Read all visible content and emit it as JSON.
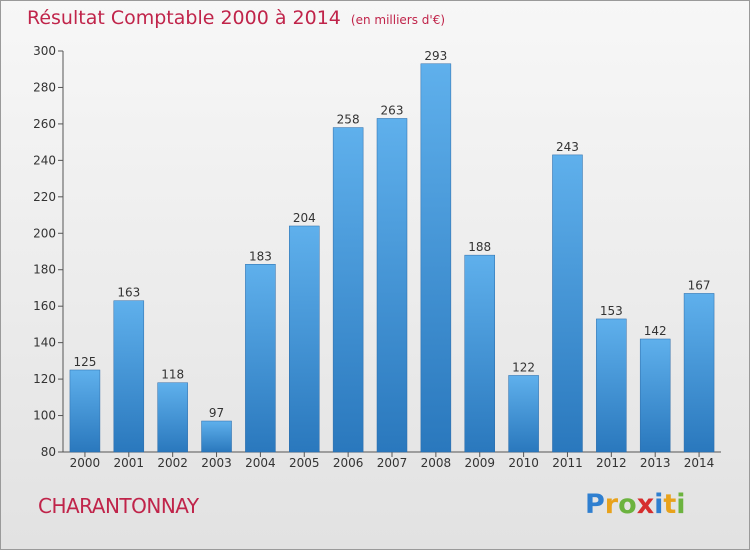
{
  "chart_data": {
    "type": "bar",
    "title": "Résultat Comptable 2000 à 2014",
    "subtitle": "(en milliers d'€)",
    "xlabel": "",
    "ylabel": "",
    "categories": [
      "2000",
      "2001",
      "2002",
      "2003",
      "2004",
      "2005",
      "2006",
      "2007",
      "2008",
      "2009",
      "2010",
      "2011",
      "2012",
      "2013",
      "2014"
    ],
    "values": [
      125,
      163,
      118,
      97,
      183,
      204,
      258,
      263,
      293,
      188,
      122,
      243,
      153,
      142,
      167
    ],
    "ylim": [
      80,
      300
    ],
    "yticks": [
      80,
      100,
      120,
      140,
      160,
      180,
      200,
      220,
      240,
      260,
      280,
      300
    ],
    "grid": false,
    "bar_color": "#3a8fd4"
  },
  "footer": {
    "commune": "CHARANTONNAY",
    "logo_letters": [
      "P",
      "r",
      "o",
      "x",
      "i",
      "t",
      "i"
    ],
    "logo_colors": [
      "#2f7fd0",
      "#e8a21b",
      "#6cb33f",
      "#d62d2d",
      "#2f7fd0",
      "#e8a21b",
      "#6cb33f"
    ]
  },
  "colors": {
    "title": "#c0244a"
  }
}
